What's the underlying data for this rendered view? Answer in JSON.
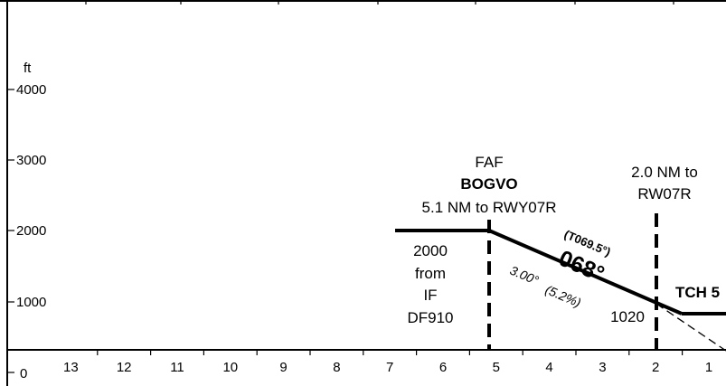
{
  "altitude_axis": {
    "unit_label": "ft",
    "ticks": [
      "4000",
      "3000",
      "2000",
      "1000",
      "0"
    ]
  },
  "distance_axis": {
    "ticks": [
      "13",
      "12",
      "11",
      "10",
      "9",
      "8",
      "7",
      "6",
      "5",
      "4",
      "3",
      "2",
      "1"
    ]
  },
  "faf": {
    "label": "FAF",
    "name": "BOGVO",
    "distance_text": "5.1 NM to RWY07R"
  },
  "stepdown_fix": {
    "line1": "2.0 NM to",
    "line2": "RW07R"
  },
  "segment_note": {
    "lines": [
      "2000",
      "from",
      "IF",
      "DF910"
    ]
  },
  "final_track": {
    "true_course": "(T069.5°)",
    "magnetic_course": "068°",
    "glide_angle": "3.00°",
    "gradient": "(5.2%)"
  },
  "altitude_at_fix": "1020",
  "tch_label": "TCH 5"
}
